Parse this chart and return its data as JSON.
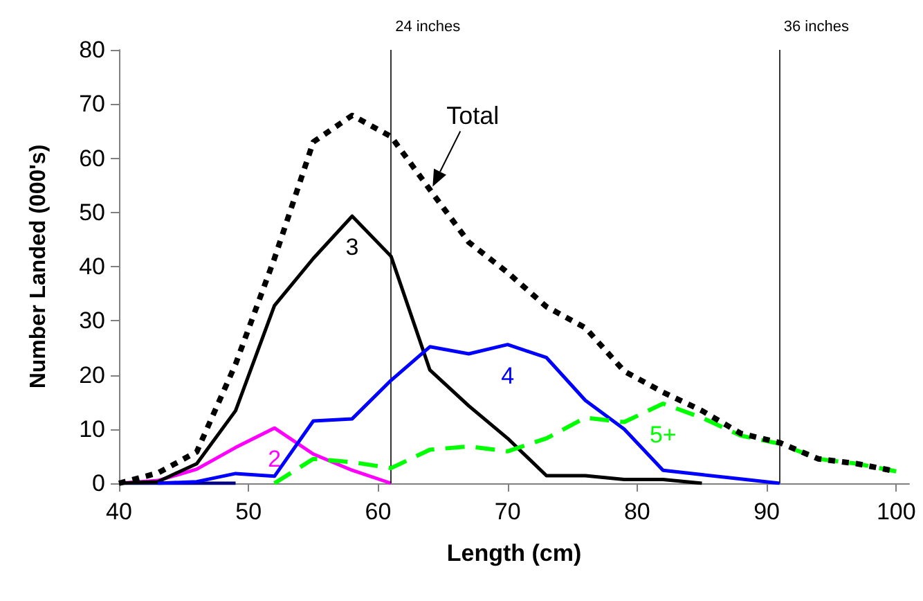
{
  "chart_data": {
    "type": "line",
    "xlabel": "Length (cm)",
    "ylabel": "Number Landed (000's)",
    "x": [
      40,
      43,
      46,
      49,
      52,
      55,
      58,
      61,
      64,
      67,
      70,
      73,
      76,
      79,
      82,
      85,
      88,
      91,
      94,
      97,
      100
    ],
    "series": [
      {
        "color": "#000080",
        "line_style": "solid",
        "x": [
          40,
          43,
          46,
          49
        ],
        "values": [
          0,
          0,
          0,
          0
        ]
      },
      {
        "name": "2",
        "color": "#ff00ff",
        "line_style": "solid",
        "x": [
          40,
          43,
          46,
          49,
          52,
          55,
          58,
          61
        ],
        "values": [
          0,
          0.5,
          2.6,
          6.6,
          10.2,
          5.4,
          2.4,
          0
        ]
      },
      {
        "name": "3",
        "color": "#000000",
        "line_style": "solid",
        "x": [
          40,
          43,
          46,
          49,
          52,
          55,
          58,
          61,
          64,
          67,
          70,
          73,
          76,
          79,
          82,
          85
        ],
        "values": [
          0,
          0.3,
          3.6,
          13.4,
          32.8,
          41.5,
          49.3,
          41.9,
          20.9,
          14.3,
          8.3,
          1.4,
          1.4,
          0.7,
          0.7,
          0
        ]
      },
      {
        "name": "4",
        "color": "#0000ff",
        "line_style": "solid",
        "x": [
          43,
          46,
          49,
          52,
          55,
          58,
          61,
          64,
          67,
          70,
          73,
          76,
          79,
          82,
          85,
          88,
          91
        ],
        "values": [
          0,
          0.3,
          1.8,
          1.3,
          11.5,
          11.9,
          19,
          25.2,
          23.9,
          25.6,
          23.2,
          15.3,
          10,
          2.4,
          1.6,
          0.8,
          0
        ]
      },
      {
        "name": "5+",
        "color": "#00ff00",
        "line_style": "dashed",
        "x": [
          52,
          55,
          58,
          61,
          64,
          67,
          70,
          73,
          76,
          79,
          82,
          85,
          88,
          91,
          94,
          97,
          100
        ],
        "values": [
          0,
          4.5,
          3.9,
          2.8,
          6.2,
          6.8,
          5.9,
          8.3,
          12.1,
          11.3,
          14.7,
          12.1,
          8.8,
          7.3,
          4.5,
          3.6,
          2.2
        ]
      },
      {
        "color": "#000000",
        "line_style": "dotted",
        "values": [
          0,
          1.9,
          5.8,
          22,
          41.5,
          63,
          67.9,
          64,
          54.2,
          44.5,
          38.9,
          32.6,
          28.7,
          20.7,
          16.8,
          13.4,
          9.2,
          7.5,
          4.5,
          3.6,
          2.2
        ]
      }
    ],
    "xlim": [
      40,
      101
    ],
    "xticks": [
      40,
      50,
      60,
      70,
      80,
      90,
      100
    ],
    "ylim": [
      0,
      80
    ],
    "yticks": [
      0,
      10,
      20,
      30,
      40,
      50,
      60,
      70,
      80
    ],
    "ref_lines": [
      {
        "axis": "x",
        "value": 61,
        "label": "24 inches"
      },
      {
        "axis": "x",
        "value": 91,
        "label": "36 inches"
      }
    ],
    "annotations": [
      {
        "text": "Total",
        "x": 64,
        "y": 54
      }
    ],
    "grid": false,
    "legend": false,
    "marker": "none"
  }
}
